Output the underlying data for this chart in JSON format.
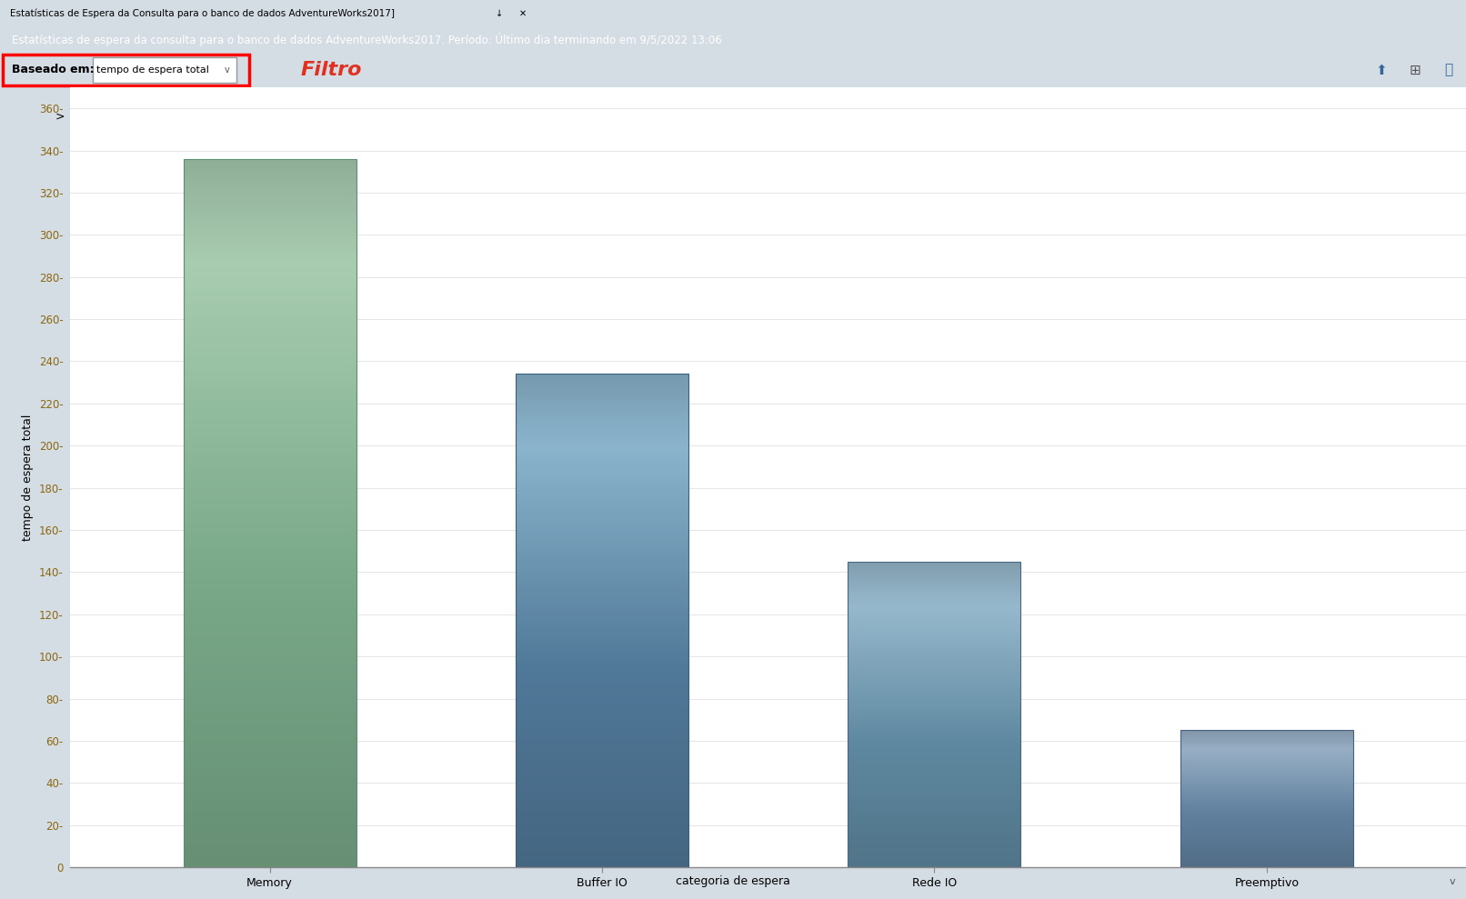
{
  "categories": [
    "Memory",
    "Buffer IO",
    "Rede IO",
    "Preemptivo"
  ],
  "values": [
    336,
    234,
    145,
    65
  ],
  "ylabel": "tempo de espera total",
  "xlabel": "categoria de espera",
  "ylim": [
    0,
    370
  ],
  "yticks": [
    0,
    20,
    40,
    60,
    80,
    100,
    120,
    140,
    160,
    180,
    200,
    220,
    240,
    260,
    280,
    300,
    320,
    340,
    360
  ],
  "title_bar_text": "Estatísticas de Espera da Consulta para o banco de dados AdventureWorks2017]",
  "subtitle_text": "Estatísticas de espera da consulta para o banco de dados AdventureWorks2017. Período: Último dia terminando em 9/5/2022 13:06",
  "baseado_em_label": "Baseado em:",
  "baseado_em_value": "tempo de espera total",
  "filtro_text": "Filtro",
  "bg_color": "#d4dce4",
  "plot_bg_color": "#ffffff",
  "title_tab_bg": "#e8e060",
  "title_rest_bg": "#1e3a5c",
  "subtitle_bg": "#2a4a78",
  "toolbar_bg": "#c8d4dc",
  "bar1_top": "#9ecbae",
  "bar1_mid": "#8bbfa0",
  "bar1_bot": "#6aaa88",
  "bar2_top": "#8aaec8",
  "bar2_mid": "#7098b8",
  "bar2_bot": "#4a7898",
  "bar3_top": "#9ab8cc",
  "bar3_mid": "#7aa0bc",
  "bar3_bot": "#5a84a0",
  "bar4_top": "#9aaec4",
  "bar4_mid": "#8098b4",
  "bar4_bot": "#5a7898"
}
